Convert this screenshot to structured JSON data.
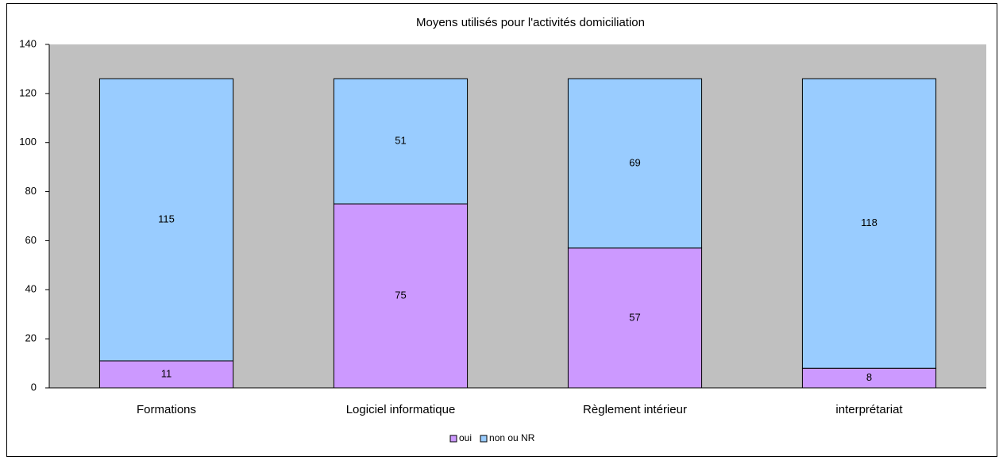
{
  "chart_data": {
    "type": "stacked_bar",
    "title": "Moyens utilisés pour l'activités domiciliation",
    "categories": [
      "Formations",
      "Logiciel informatique",
      "Règlement intérieur",
      "interprétariat"
    ],
    "series": [
      {
        "name": "oui",
        "color": "#cc99ff",
        "values": [
          11,
          75,
          57,
          8
        ]
      },
      {
        "name": "non ou NR",
        "color": "#99ccff",
        "values": [
          115,
          51,
          69,
          118
        ]
      }
    ],
    "ylim": [
      0,
      140
    ],
    "yticks": [
      0,
      20,
      40,
      60,
      80,
      100,
      120,
      140
    ],
    "plot_background": "#c0c0c0",
    "legend": "bottom"
  }
}
